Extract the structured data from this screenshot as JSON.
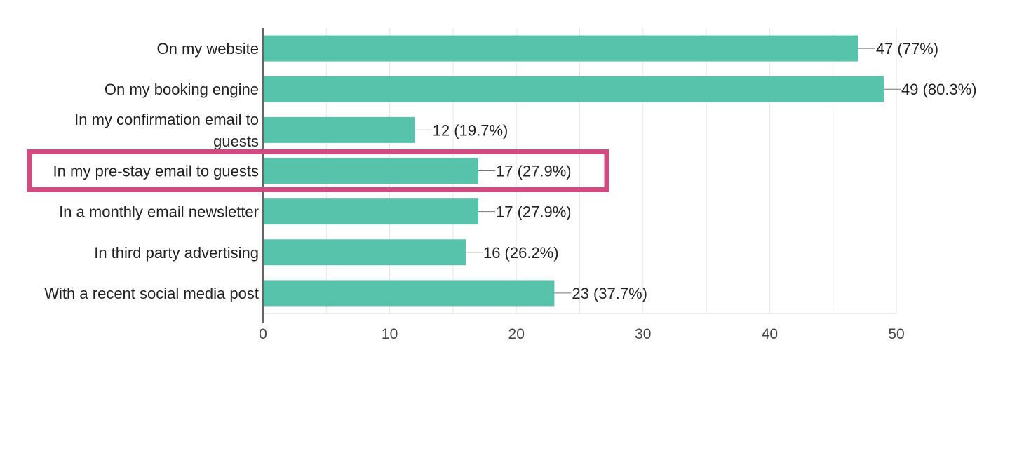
{
  "chart_data": {
    "type": "bar",
    "orientation": "horizontal",
    "categories": [
      [
        "On my website"
      ],
      [
        "On my booking engine"
      ],
      [
        "In my confirmation email to",
        "guests"
      ],
      [
        "In my pre-stay email to guests"
      ],
      [
        "In a monthly email newsletter"
      ],
      [
        "In third party advertising"
      ],
      [
        "With a recent social media post"
      ]
    ],
    "values": [
      47,
      49,
      12,
      17,
      17,
      16,
      23
    ],
    "data_labels": [
      "47 (77%)",
      "49 (80.3%)",
      "12 (19.7%)",
      "17 (27.9%)",
      "17 (27.9%)",
      "16 (26.2%)",
      "23 (37.7%)"
    ],
    "xlim": [
      0,
      50
    ],
    "x_ticks": [
      0,
      10,
      20,
      30,
      40,
      50
    ],
    "grid": true,
    "legend": "none",
    "title": "",
    "xlabel": "",
    "ylabel": "",
    "highlighted_category_index": 3
  },
  "colors": {
    "bar": "#57c3aa",
    "highlight_box": "#d24a7f",
    "grid": "#e6e6e6",
    "axis": "#333333",
    "leader_line": "#777777"
  }
}
